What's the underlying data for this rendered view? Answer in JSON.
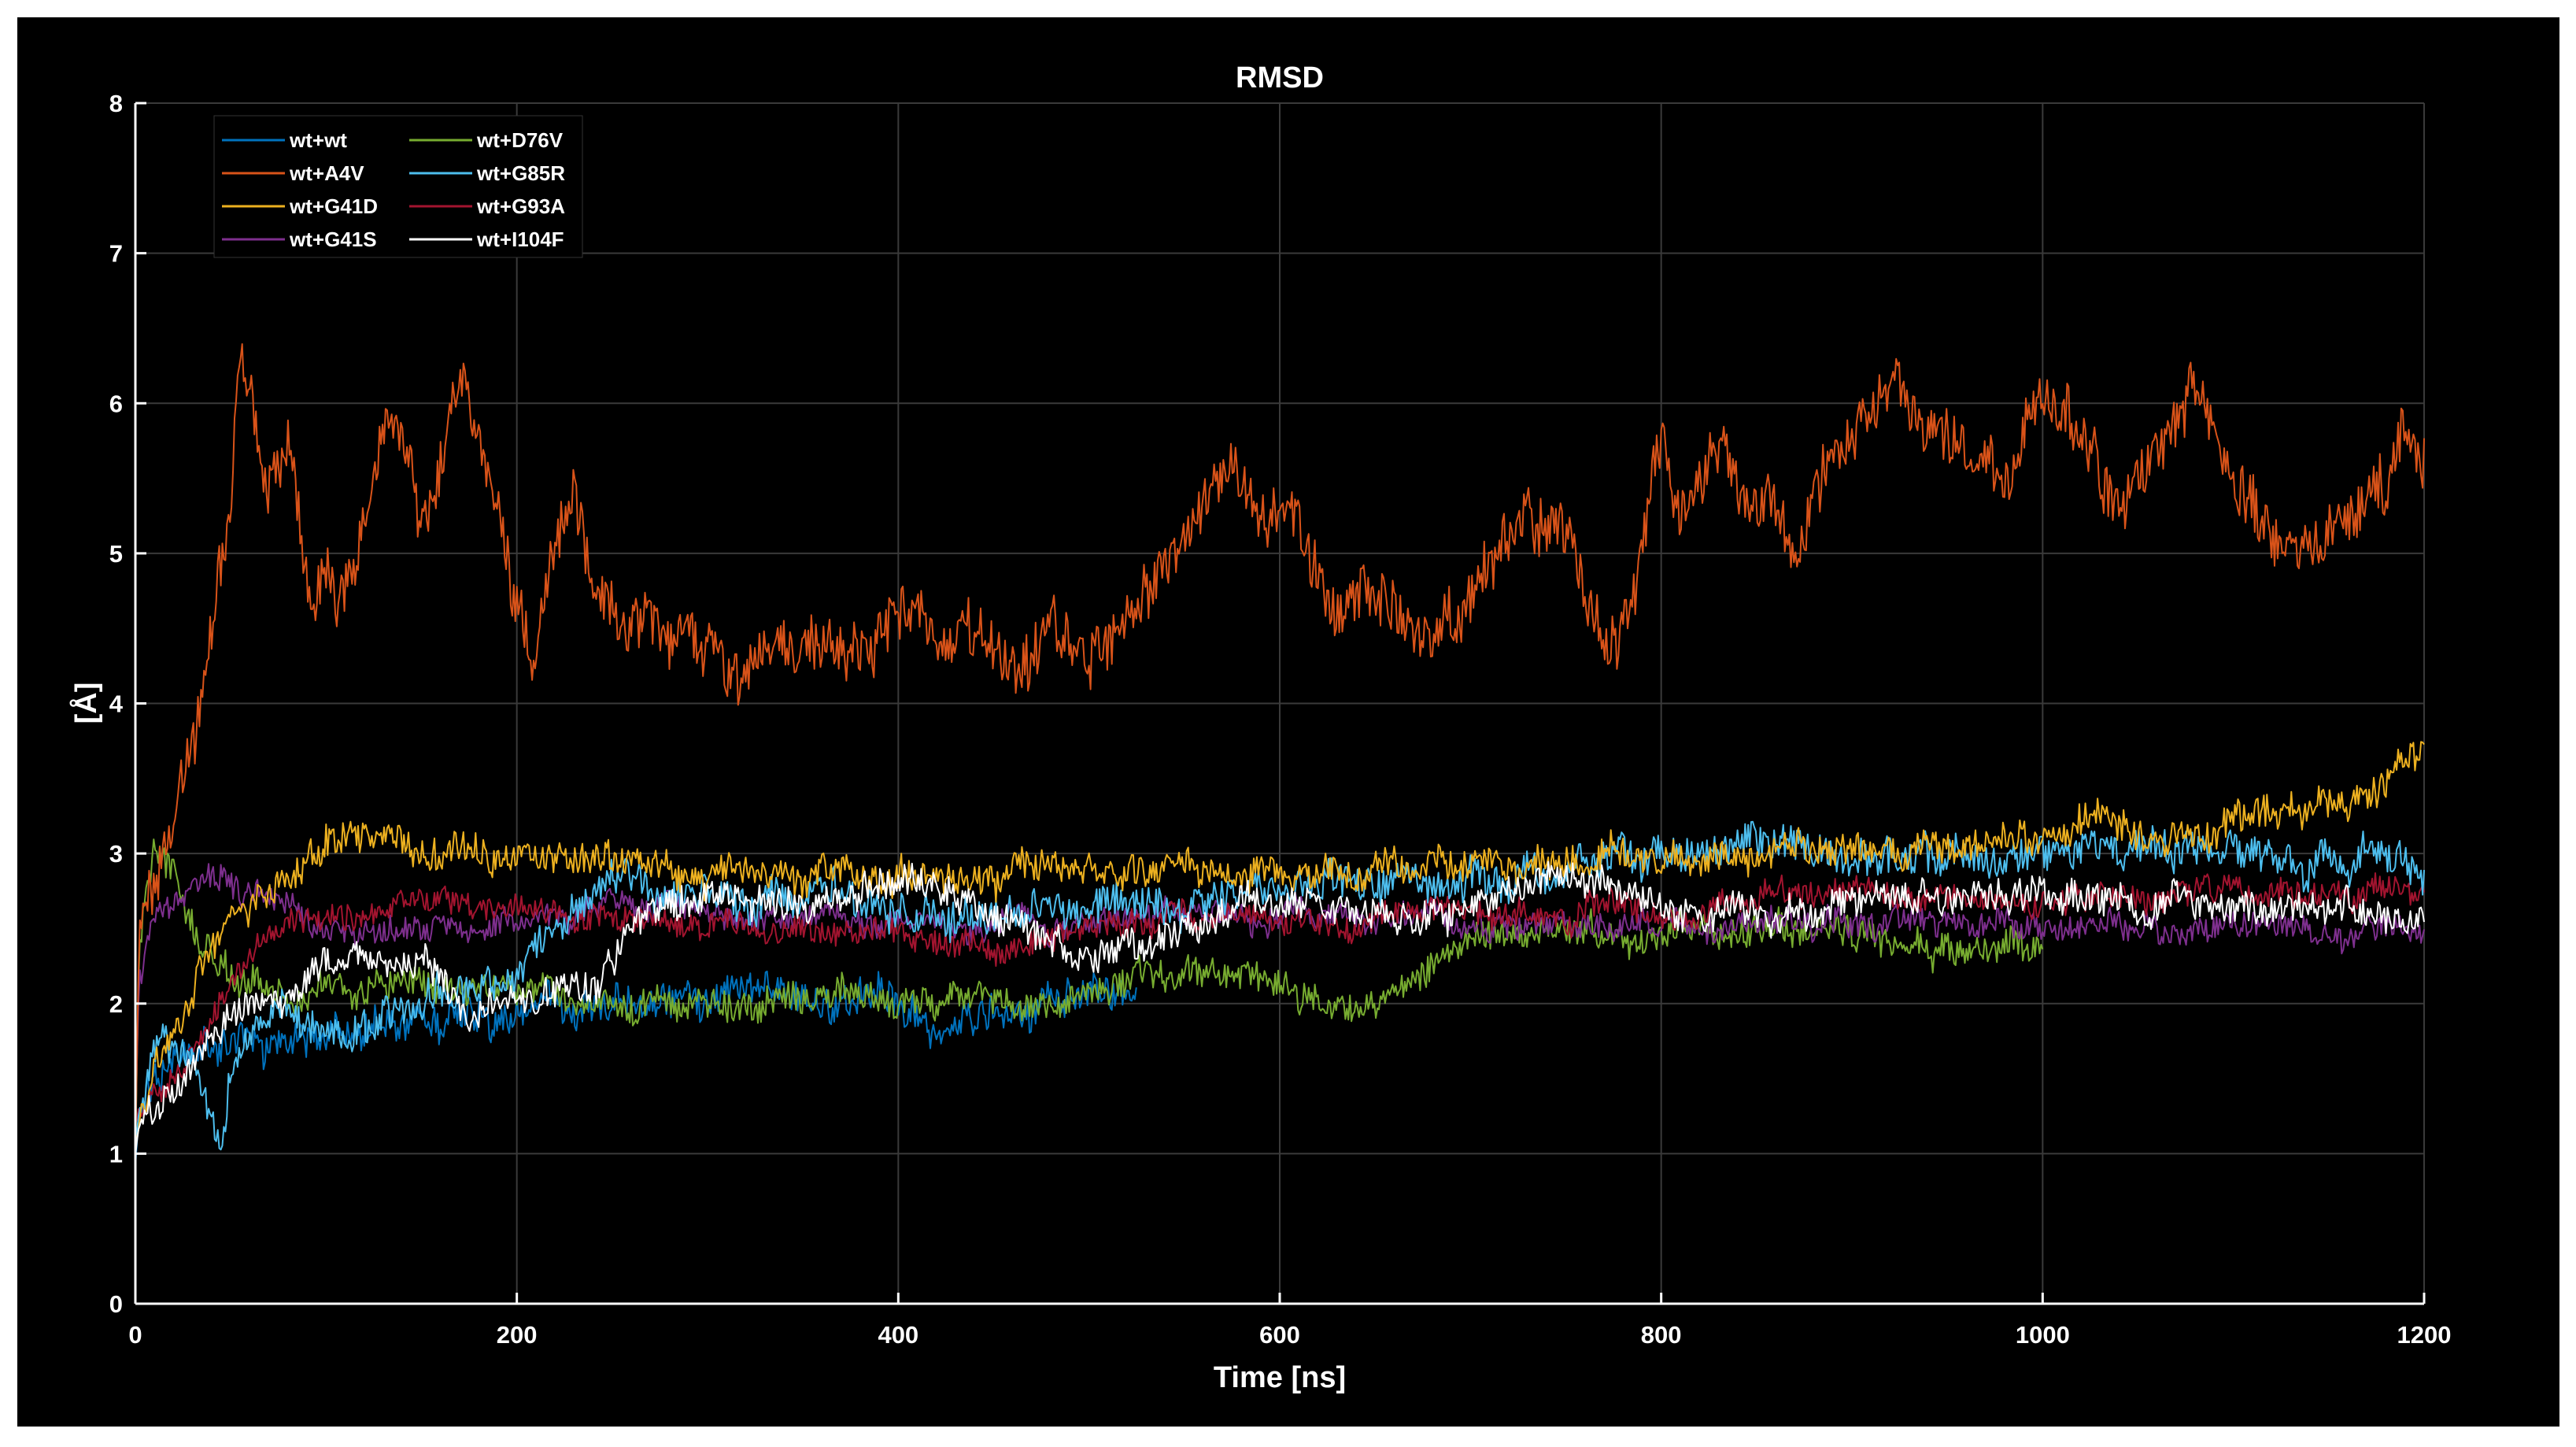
{
  "chart_data": {
    "type": "line",
    "title": "RMSD",
    "xlabel": "Time [ns]",
    "ylabel": "[Å]",
    "xlim": [
      0,
      1200
    ],
    "ylim": [
      0,
      8
    ],
    "xticks": [
      0,
      200,
      400,
      600,
      800,
      1000,
      1200
    ],
    "yticks": [
      0,
      1,
      2,
      3,
      4,
      5,
      6,
      7,
      8
    ],
    "grid": true,
    "legend_placement": "top-left",
    "background": "#000000",
    "series": [
      {
        "name": "wt+wt",
        "color": "#0072BD",
        "noise": 0.14,
        "x": [
          0,
          2,
          10,
          25,
          50,
          75,
          100,
          150,
          200,
          250,
          300,
          350,
          400,
          425,
          450,
          500,
          525
        ],
        "y": [
          0.9,
          1.3,
          1.5,
          1.6,
          1.7,
          1.75,
          1.8,
          1.9,
          1.95,
          2.0,
          2.0,
          2.05,
          2.0,
          1.85,
          1.95,
          2.0,
          1.95
        ]
      },
      {
        "name": "wt+A4V",
        "color": "#D95319",
        "noise": 0.22,
        "x": [
          0,
          2,
          10,
          20,
          30,
          40,
          50,
          55,
          60,
          70,
          80,
          90,
          100,
          110,
          120,
          130,
          140,
          150,
          160,
          170,
          180,
          190,
          200,
          210,
          220,
          230,
          240,
          260,
          280,
          300,
          320,
          340,
          360,
          380,
          400,
          410,
          420,
          440,
          460,
          470,
          480,
          500,
          520,
          540,
          560,
          575,
          590,
          610,
          630,
          650,
          670,
          690,
          710,
          730,
          750,
          760,
          770,
          780,
          790,
          800,
          810,
          830,
          850,
          870,
          890,
          910,
          925,
          940,
          960,
          980,
          1000,
          1020,
          1040,
          1060,
          1080,
          1090,
          1100,
          1120,
          1140,
          1160,
          1180,
          1190,
          1200
        ],
        "y": [
          1.0,
          2.5,
          2.8,
          3.2,
          3.6,
          4.3,
          5.3,
          6.3,
          6.0,
          5.3,
          5.8,
          4.8,
          4.9,
          4.6,
          5.2,
          5.8,
          5.9,
          5.2,
          5.6,
          6.1,
          5.7,
          5.3,
          4.6,
          4.3,
          5.1,
          5.6,
          4.8,
          4.6,
          4.4,
          4.3,
          4.25,
          4.4,
          4.3,
          4.35,
          4.5,
          4.7,
          4.4,
          4.5,
          4.1,
          4.35,
          4.5,
          4.25,
          4.6,
          4.9,
          5.2,
          5.6,
          5.2,
          5.3,
          4.6,
          4.8,
          4.6,
          4.6,
          5.0,
          5.2,
          5.1,
          4.7,
          4.4,
          4.6,
          4.9,
          5.8,
          5.3,
          5.7,
          5.4,
          5.2,
          5.6,
          6.0,
          6.4,
          5.7,
          5.8,
          5.5,
          6.0,
          5.8,
          5.3,
          5.6,
          6.1,
          5.7,
          5.2,
          5.1,
          5.0,
          5.2,
          5.4,
          5.8,
          5.6
        ]
      },
      {
        "name": "wt+G41D",
        "color": "#EDB120",
        "noise": 0.13,
        "x": [
          0,
          2,
          10,
          25,
          40,
          60,
          80,
          100,
          150,
          200,
          250,
          300,
          400,
          500,
          600,
          700,
          800,
          900,
          1000,
          1050,
          1100,
          1150,
          1180,
          1200
        ],
        "y": [
          1.0,
          1.2,
          1.6,
          2.0,
          2.4,
          2.7,
          2.9,
          3.1,
          3.05,
          3.0,
          2.95,
          2.9,
          2.85,
          2.9,
          2.9,
          2.95,
          3.0,
          3.05,
          3.1,
          3.2,
          3.2,
          3.3,
          3.5,
          3.7
        ]
      },
      {
        "name": "wt+G41S",
        "color": "#7E2F8E",
        "noise": 0.1,
        "x": [
          0,
          2,
          10,
          25,
          40,
          60,
          80,
          100,
          150,
          200,
          250,
          300,
          400,
          500,
          600,
          700,
          800,
          900,
          1000,
          1100,
          1200
        ],
        "y": [
          1.2,
          2.2,
          2.6,
          2.7,
          2.9,
          2.8,
          2.6,
          2.5,
          2.5,
          2.6,
          2.65,
          2.6,
          2.55,
          2.55,
          2.6,
          2.55,
          2.5,
          2.55,
          2.5,
          2.5,
          2.45
        ]
      },
      {
        "name": "wt+D76V",
        "color": "#77AC30",
        "noise": 0.12,
        "x": [
          0,
          2,
          10,
          20,
          30,
          40,
          50,
          70,
          100,
          150,
          200,
          250,
          300,
          400,
          500,
          550,
          600,
          650,
          670,
          700,
          750,
          800,
          850,
          900,
          950,
          1000
        ],
        "y": [
          1.0,
          2.4,
          3.0,
          2.8,
          2.5,
          2.3,
          2.2,
          2.1,
          2.1,
          2.1,
          2.1,
          2.0,
          2.0,
          2.05,
          2.1,
          2.2,
          2.15,
          2.05,
          2.2,
          2.4,
          2.5,
          2.5,
          2.45,
          2.4,
          2.35,
          2.35
        ]
      },
      {
        "name": "wt+G85R",
        "color": "#4DBEEE",
        "noise": 0.14,
        "x": [
          0,
          2,
          10,
          20,
          30,
          40,
          45,
          50,
          60,
          80,
          100,
          150,
          200,
          220,
          240,
          260,
          280,
          300,
          350,
          400,
          450,
          500,
          550,
          600,
          650,
          700,
          750,
          800,
          850,
          900,
          950,
          1000,
          1050,
          1100,
          1150,
          1200
        ],
        "y": [
          1.0,
          1.3,
          1.6,
          1.7,
          1.6,
          1.2,
          1.05,
          1.6,
          1.9,
          1.9,
          1.85,
          2.0,
          2.2,
          2.5,
          2.75,
          2.8,
          2.75,
          2.7,
          2.7,
          2.65,
          2.6,
          2.65,
          2.7,
          2.75,
          2.8,
          2.85,
          2.9,
          2.95,
          3.1,
          3.0,
          3.0,
          3.0,
          3.05,
          3.05,
          3.0,
          2.95
        ]
      },
      {
        "name": "wt+G93A",
        "color": "#A2142F",
        "noise": 0.1,
        "x": [
          0,
          2,
          10,
          25,
          40,
          60,
          80,
          100,
          150,
          200,
          300,
          400,
          450,
          500,
          600,
          700,
          800,
          900,
          1000,
          1100,
          1200
        ],
        "y": [
          1.2,
          1.3,
          1.4,
          1.6,
          1.9,
          2.3,
          2.45,
          2.55,
          2.65,
          2.6,
          2.5,
          2.45,
          2.35,
          2.5,
          2.55,
          2.6,
          2.65,
          2.7,
          2.7,
          2.75,
          2.75
        ]
      },
      {
        "name": "wt+I104F",
        "color": "#FFFFFF",
        "noise": 0.12,
        "x": [
          0,
          2,
          10,
          25,
          50,
          75,
          100,
          150,
          175,
          200,
          240,
          260,
          280,
          300,
          350,
          400,
          450,
          500,
          550,
          600,
          650,
          700,
          750,
          800,
          850,
          900,
          950,
          1000,
          1050,
          1100,
          1150,
          1200
        ],
        "y": [
          1.0,
          1.2,
          1.35,
          1.5,
          1.8,
          2.1,
          2.25,
          2.3,
          1.9,
          2.0,
          2.1,
          2.5,
          2.7,
          2.7,
          2.65,
          2.8,
          2.6,
          2.3,
          2.5,
          2.7,
          2.6,
          2.65,
          2.9,
          2.6,
          2.55,
          2.7,
          2.7,
          2.75,
          2.65,
          2.7,
          2.65,
          2.6
        ]
      }
    ]
  }
}
